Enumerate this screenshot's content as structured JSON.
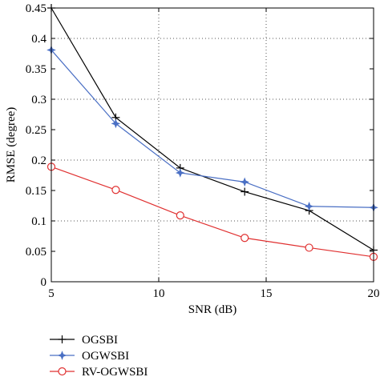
{
  "chart_data": {
    "type": "line",
    "xlabel": "SNR (dB)",
    "ylabel": "RMSE (degree)",
    "xlim": [
      5,
      20
    ],
    "ylim": [
      0,
      0.45
    ],
    "xticks": [
      5,
      10,
      15,
      20
    ],
    "yticks": [
      0,
      0.05,
      0.1,
      0.15,
      0.2,
      0.25,
      0.3,
      0.35,
      0.4,
      0.45
    ],
    "grid": true,
    "legend_position": "below plot",
    "series": [
      {
        "name": "OGSBI",
        "color": "#000000",
        "marker": "plus",
        "x": [
          5,
          8,
          11,
          14,
          17,
          20
        ],
        "y": [
          0.45,
          0.27,
          0.187,
          0.148,
          0.117,
          0.052
        ]
      },
      {
        "name": "OGWSBI",
        "color": "#4a6fc4",
        "marker": "star",
        "x": [
          5,
          8,
          11,
          14,
          17,
          20
        ],
        "y": [
          0.381,
          0.26,
          0.179,
          0.164,
          0.124,
          0.122
        ]
      },
      {
        "name": "RV-OGWSBI",
        "color": "#e03030",
        "marker": "circle",
        "x": [
          5,
          8,
          11,
          14,
          17,
          20
        ],
        "y": [
          0.189,
          0.151,
          0.109,
          0.072,
          0.056,
          0.041
        ]
      }
    ]
  }
}
